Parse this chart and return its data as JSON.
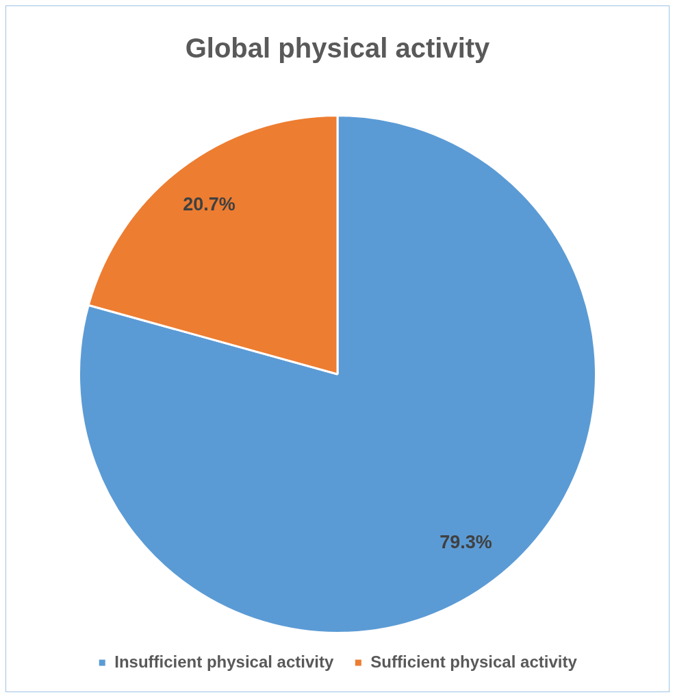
{
  "chart_data": {
    "type": "pie",
    "title": "Global physical activity",
    "categories": [
      "Insufficient physical activity",
      "Sufficient physical activity"
    ],
    "values": [
      79.3,
      20.7
    ],
    "colors": [
      "#5b9bd5",
      "#ed7d31"
    ],
    "value_labels": [
      "79.3%",
      "20.7%"
    ],
    "legend": "bottom"
  }
}
